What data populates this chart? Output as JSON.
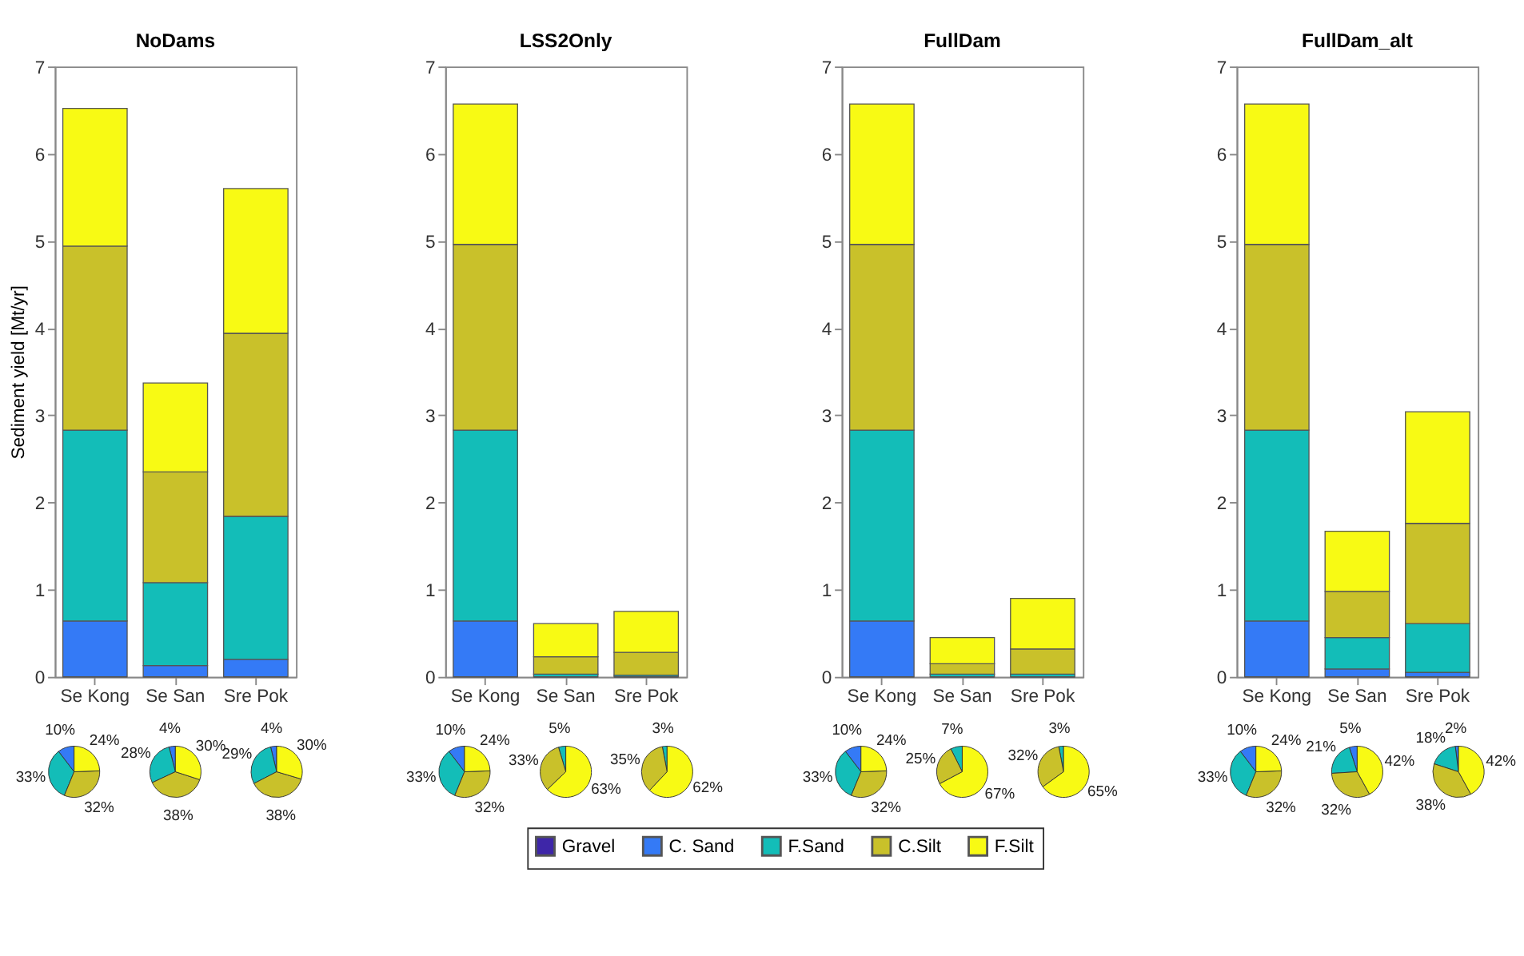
{
  "chart_data": [
    {
      "type": "bar",
      "title": "NoDams",
      "ylabel": "Sediment yield [Mt/yr]",
      "categories": [
        "Se Kong",
        "Se San",
        "Sre Pok"
      ],
      "stacked": true,
      "ylim": [
        0,
        7
      ],
      "yticks": [
        0,
        1,
        2,
        3,
        4,
        5,
        6,
        7
      ],
      "legend": "bottom",
      "series": [
        {
          "name": "Gravel",
          "color": "#3e26a8",
          "values": [
            0,
            0,
            0
          ]
        },
        {
          "name": "C. Sand",
          "color": "#347af6",
          "values": [
            0.64,
            0.13,
            0.2
          ]
        },
        {
          "name": "F.Sand",
          "color": "#13bdb8",
          "values": [
            2.19,
            0.95,
            1.64
          ]
        },
        {
          "name": "C.Silt",
          "color": "#c9c12a",
          "values": [
            2.11,
            1.27,
            2.1
          ]
        },
        {
          "name": "F.Silt",
          "color": "#f8fa14",
          "values": [
            1.58,
            1.02,
            1.66
          ]
        }
      ]
    },
    {
      "type": "bar",
      "title": "LSS2Only",
      "categories": [
        "Se Kong",
        "Se San",
        "Sre Pok"
      ],
      "stacked": true,
      "ylim": [
        0,
        7
      ],
      "yticks": [
        0,
        1,
        2,
        3,
        4,
        5,
        6,
        7
      ],
      "series": [
        {
          "color": "#3e26a8",
          "values": [
            0,
            0,
            0
          ]
        },
        {
          "color": "#347af6",
          "values": [
            0.64,
            0,
            0
          ]
        },
        {
          "color": "#13bdb8",
          "values": [
            2.19,
            0.03,
            0.02
          ]
        },
        {
          "color": "#c9c12a",
          "values": [
            2.13,
            0.2,
            0.26
          ]
        },
        {
          "color": "#f8fa14",
          "values": [
            1.61,
            0.38,
            0.47
          ]
        }
      ]
    },
    {
      "type": "bar",
      "title": "FullDam",
      "categories": [
        "Se Kong",
        "Se San",
        "Sre Pok"
      ],
      "stacked": true,
      "ylim": [
        0,
        7
      ],
      "yticks": [
        0,
        1,
        2,
        3,
        4,
        5,
        6,
        7
      ],
      "series": [
        {
          "color": "#3e26a8",
          "values": [
            0,
            0,
            0
          ]
        },
        {
          "color": "#347af6",
          "values": [
            0.64,
            0,
            0
          ]
        },
        {
          "color": "#13bdb8",
          "values": [
            2.19,
            0.03,
            0.03
          ]
        },
        {
          "color": "#c9c12a",
          "values": [
            2.13,
            0.12,
            0.29
          ]
        },
        {
          "color": "#f8fa14",
          "values": [
            1.61,
            0.3,
            0.58
          ]
        }
      ]
    },
    {
      "type": "bar",
      "title": "FullDam_alt",
      "categories": [
        "Se Kong",
        "Se San",
        "Sre Pok"
      ],
      "stacked": true,
      "ylim": [
        0,
        7
      ],
      "yticks": [
        0,
        1,
        2,
        3,
        4,
        5,
        6,
        7
      ],
      "series": [
        {
          "color": "#3e26a8",
          "values": [
            0,
            0,
            0
          ]
        },
        {
          "color": "#347af6",
          "values": [
            0.64,
            0.09,
            0.05
          ]
        },
        {
          "color": "#13bdb8",
          "values": [
            2.19,
            0.36,
            0.56
          ]
        },
        {
          "color": "#c9c12a",
          "values": [
            2.13,
            0.53,
            1.15
          ]
        },
        {
          "color": "#f8fa14",
          "values": [
            1.61,
            0.69,
            1.28
          ]
        }
      ]
    },
    {
      "type": "pie",
      "categories": [
        null,
        null,
        null,
        null
      ],
      "values": [
        10.4,
        33.4,
        31.8,
        24.4
      ],
      "value_labels": [
        "10%",
        "33%",
        "32%",
        "24%"
      ],
      "colors": [
        "#347af6",
        "#13bdb8",
        "#c9c12a",
        "#f8fa14"
      ]
    },
    {
      "type": "pie",
      "categories": [
        null,
        null,
        null,
        null
      ],
      "values": [
        4,
        28,
        38,
        30
      ],
      "value_labels": [
        "4%",
        "28%",
        "38%",
        "30%"
      ],
      "colors": [
        "#347af6",
        "#13bdb8",
        "#c9c12a",
        "#f8fa14"
      ]
    },
    {
      "type": "pie",
      "categories": [
        null,
        null,
        null,
        null
      ],
      "values": [
        3.8,
        28.8,
        37.8,
        29.6
      ],
      "value_labels": [
        "4%",
        "29%",
        "38%",
        "30%"
      ],
      "colors": [
        "#347af6",
        "#13bdb8",
        "#c9c12a",
        "#f8fa14"
      ]
    },
    {
      "type": "pie",
      "categories": [
        null,
        null,
        null,
        null
      ],
      "values": [
        10.4,
        33.4,
        31.8,
        24.4
      ],
      "value_labels": [
        "10%",
        "33%",
        "32%",
        "24%"
      ],
      "colors": [
        "#347af6",
        "#13bdb8",
        "#c9c12a",
        "#f8fa14"
      ]
    },
    {
      "type": "pie",
      "categories": [
        null,
        null,
        null
      ],
      "values": [
        4.6,
        32.6,
        62.8
      ],
      "value_labels": [
        "5%",
        "33%",
        "63%"
      ],
      "colors": [
        "#13bdb8",
        "#c9c12a",
        "#f8fa14"
      ]
    },
    {
      "type": "pie",
      "categories": [
        null,
        null,
        null
      ],
      "values": [
        3,
        35,
        62
      ],
      "value_labels": [
        "3%",
        "35%",
        "62%"
      ],
      "colors": [
        "#13bdb8",
        "#c9c12a",
        "#f8fa14"
      ]
    },
    {
      "type": "pie",
      "categories": [
        null,
        null,
        null,
        null
      ],
      "values": [
        10.4,
        33.4,
        31.8,
        24.4
      ],
      "value_labels": [
        "10%",
        "33%",
        "32%",
        "24%"
      ],
      "colors": [
        "#347af6",
        "#13bdb8",
        "#c9c12a",
        "#f8fa14"
      ]
    },
    {
      "type": "pie",
      "categories": [
        null,
        null,
        null
      ],
      "values": [
        7.4,
        25.4,
        67.2
      ],
      "value_labels": [
        "7%",
        "25%",
        "67%"
      ],
      "colors": [
        "#13bdb8",
        "#c9c12a",
        "#f8fa14"
      ]
    },
    {
      "type": "pie",
      "categories": [
        null,
        null,
        null
      ],
      "values": [
        3,
        32,
        65
      ],
      "value_labels": [
        "3%",
        "32%",
        "65%"
      ],
      "colors": [
        "#13bdb8",
        "#c9c12a",
        "#f8fa14"
      ]
    },
    {
      "type": "pie",
      "categories": [
        null,
        null,
        null,
        null
      ],
      "values": [
        10.4,
        33.4,
        31.8,
        24.4
      ],
      "value_labels": [
        "10%",
        "33%",
        "32%",
        "24%"
      ],
      "colors": [
        "#347af6",
        "#13bdb8",
        "#c9c12a",
        "#f8fa14"
      ]
    },
    {
      "type": "pie",
      "categories": [
        null,
        null,
        null,
        null
      ],
      "values": [
        5,
        21,
        32,
        42
      ],
      "value_labels": [
        "5%",
        "21%",
        "32%",
        "42%"
      ],
      "colors": [
        "#347af6",
        "#13bdb8",
        "#c9c12a",
        "#f8fa14"
      ]
    },
    {
      "type": "pie",
      "categories": [
        null,
        null,
        null,
        null
      ],
      "values": [
        2,
        18,
        38,
        42
      ],
      "value_labels": [
        "2%",
        "18%",
        "38%",
        "42%"
      ],
      "colors": [
        "#347af6",
        "#13bdb8",
        "#c9c12a",
        "#f8fa14"
      ]
    }
  ]
}
